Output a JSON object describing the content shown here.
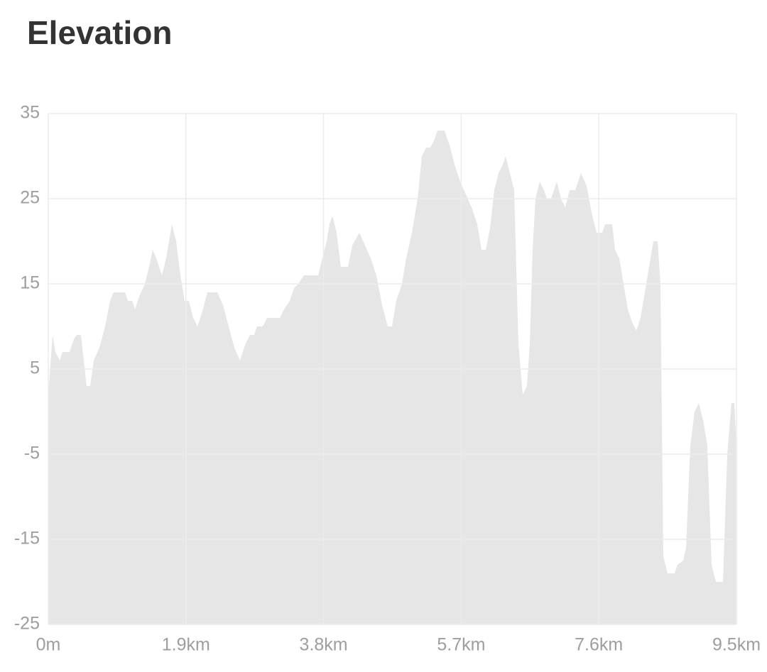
{
  "chart_data": {
    "type": "area",
    "title": "Elevation",
    "color": "#e6e6e6",
    "grid": true,
    "xlim": [
      0,
      9.5
    ],
    "ylim": [
      -25,
      35
    ],
    "yticks": [
      35,
      25,
      15,
      5,
      -5,
      -15,
      -25
    ],
    "xticks": [
      {
        "value": 0,
        "label": "0m"
      },
      {
        "value": 1.9,
        "label": "1.9km"
      },
      {
        "value": 3.8,
        "label": "3.8km"
      },
      {
        "value": 5.7,
        "label": "5.7km"
      },
      {
        "value": 7.6,
        "label": "7.6km"
      },
      {
        "value": 9.5,
        "label": "9.5km"
      }
    ],
    "x": [
      0,
      0.059,
      0.098,
      0.157,
      0.196,
      0.294,
      0.353,
      0.392,
      0.451,
      0.49,
      0.529,
      0.578,
      0.627,
      0.706,
      0.784,
      0.853,
      0.902,
      1.059,
      1.098,
      1.157,
      1.196,
      1.255,
      1.333,
      1.392,
      1.441,
      1.49,
      1.569,
      1.627,
      1.706,
      1.765,
      1.824,
      1.882,
      1.941,
      2.0,
      2.059,
      2.118,
      2.196,
      2.333,
      2.412,
      2.49,
      2.569,
      2.647,
      2.725,
      2.784,
      2.843,
      2.882,
      2.961,
      3.02,
      3.196,
      3.255,
      3.333,
      3.392,
      3.451,
      3.529,
      3.725,
      3.784,
      3.843,
      3.882,
      3.922,
      3.98,
      4.039,
      4.137,
      4.196,
      4.294,
      4.373,
      4.451,
      4.529,
      4.608,
      4.686,
      4.745,
      4.804,
      4.882,
      4.941,
      5.02,
      5.098,
      5.157,
      5.216,
      5.275,
      5.333,
      5.373,
      5.471,
      5.549,
      5.608,
      5.686,
      5.765,
      5.843,
      5.922,
      5.98,
      6.039,
      6.098,
      6.157,
      6.216,
      6.275,
      6.314,
      6.373,
      6.431,
      6.49,
      6.549,
      6.608,
      6.647,
      6.686,
      6.725,
      6.784,
      6.843,
      6.882,
      6.941,
      7.02,
      7.078,
      7.137,
      7.196,
      7.275,
      7.353,
      7.431,
      7.51,
      7.569,
      7.647,
      7.686,
      7.784,
      7.824,
      7.882,
      7.941,
      8.0,
      8.059,
      8.118,
      8.176,
      8.235,
      8.294,
      8.353,
      8.412,
      8.451,
      8.49,
      8.549,
      8.647,
      8.686,
      8.765,
      8.804,
      8.863,
      8.922,
      8.98,
      9.039,
      9.098,
      9.157,
      9.216,
      9.314,
      9.373,
      9.431,
      9.471,
      9.5
    ],
    "values": [
      2,
      9,
      7,
      6,
      7,
      7,
      8.5,
      9,
      9,
      6,
      3,
      3,
      6,
      7.5,
      10,
      13,
      14,
      14,
      13,
      13,
      12,
      13.5,
      15,
      17,
      19,
      18,
      16,
      18,
      22,
      20,
      16,
      13,
      13,
      11,
      10,
      11.5,
      14,
      14,
      12.5,
      10,
      7.5,
      6,
      8,
      9,
      9,
      10,
      10,
      11,
      11,
      12,
      13,
      14.5,
      15,
      16,
      16,
      18,
      20,
      22,
      23,
      21,
      17,
      17,
      19.5,
      21,
      19.5,
      18,
      16,
      12.5,
      10,
      10,
      13,
      15,
      18,
      21,
      25,
      30,
      31,
      31,
      32,
      33,
      33,
      31,
      29,
      27,
      25.5,
      24,
      22,
      19,
      19,
      21.5,
      26,
      28,
      29,
      30,
      28,
      26,
      8,
      2,
      3,
      8,
      19,
      25,
      27,
      26,
      25,
      25,
      27,
      25,
      24,
      26,
      26,
      28,
      26.5,
      23,
      21,
      21,
      22,
      22,
      19,
      18,
      15,
      12,
      10.5,
      9.5,
      11,
      14,
      17,
      20,
      20,
      15,
      -17,
      -19,
      -19,
      -18,
      -17.5,
      -16,
      -4,
      0,
      1,
      -1,
      -4,
      -18,
      -20,
      -20,
      -5,
      1,
      1,
      -4
    ]
  }
}
